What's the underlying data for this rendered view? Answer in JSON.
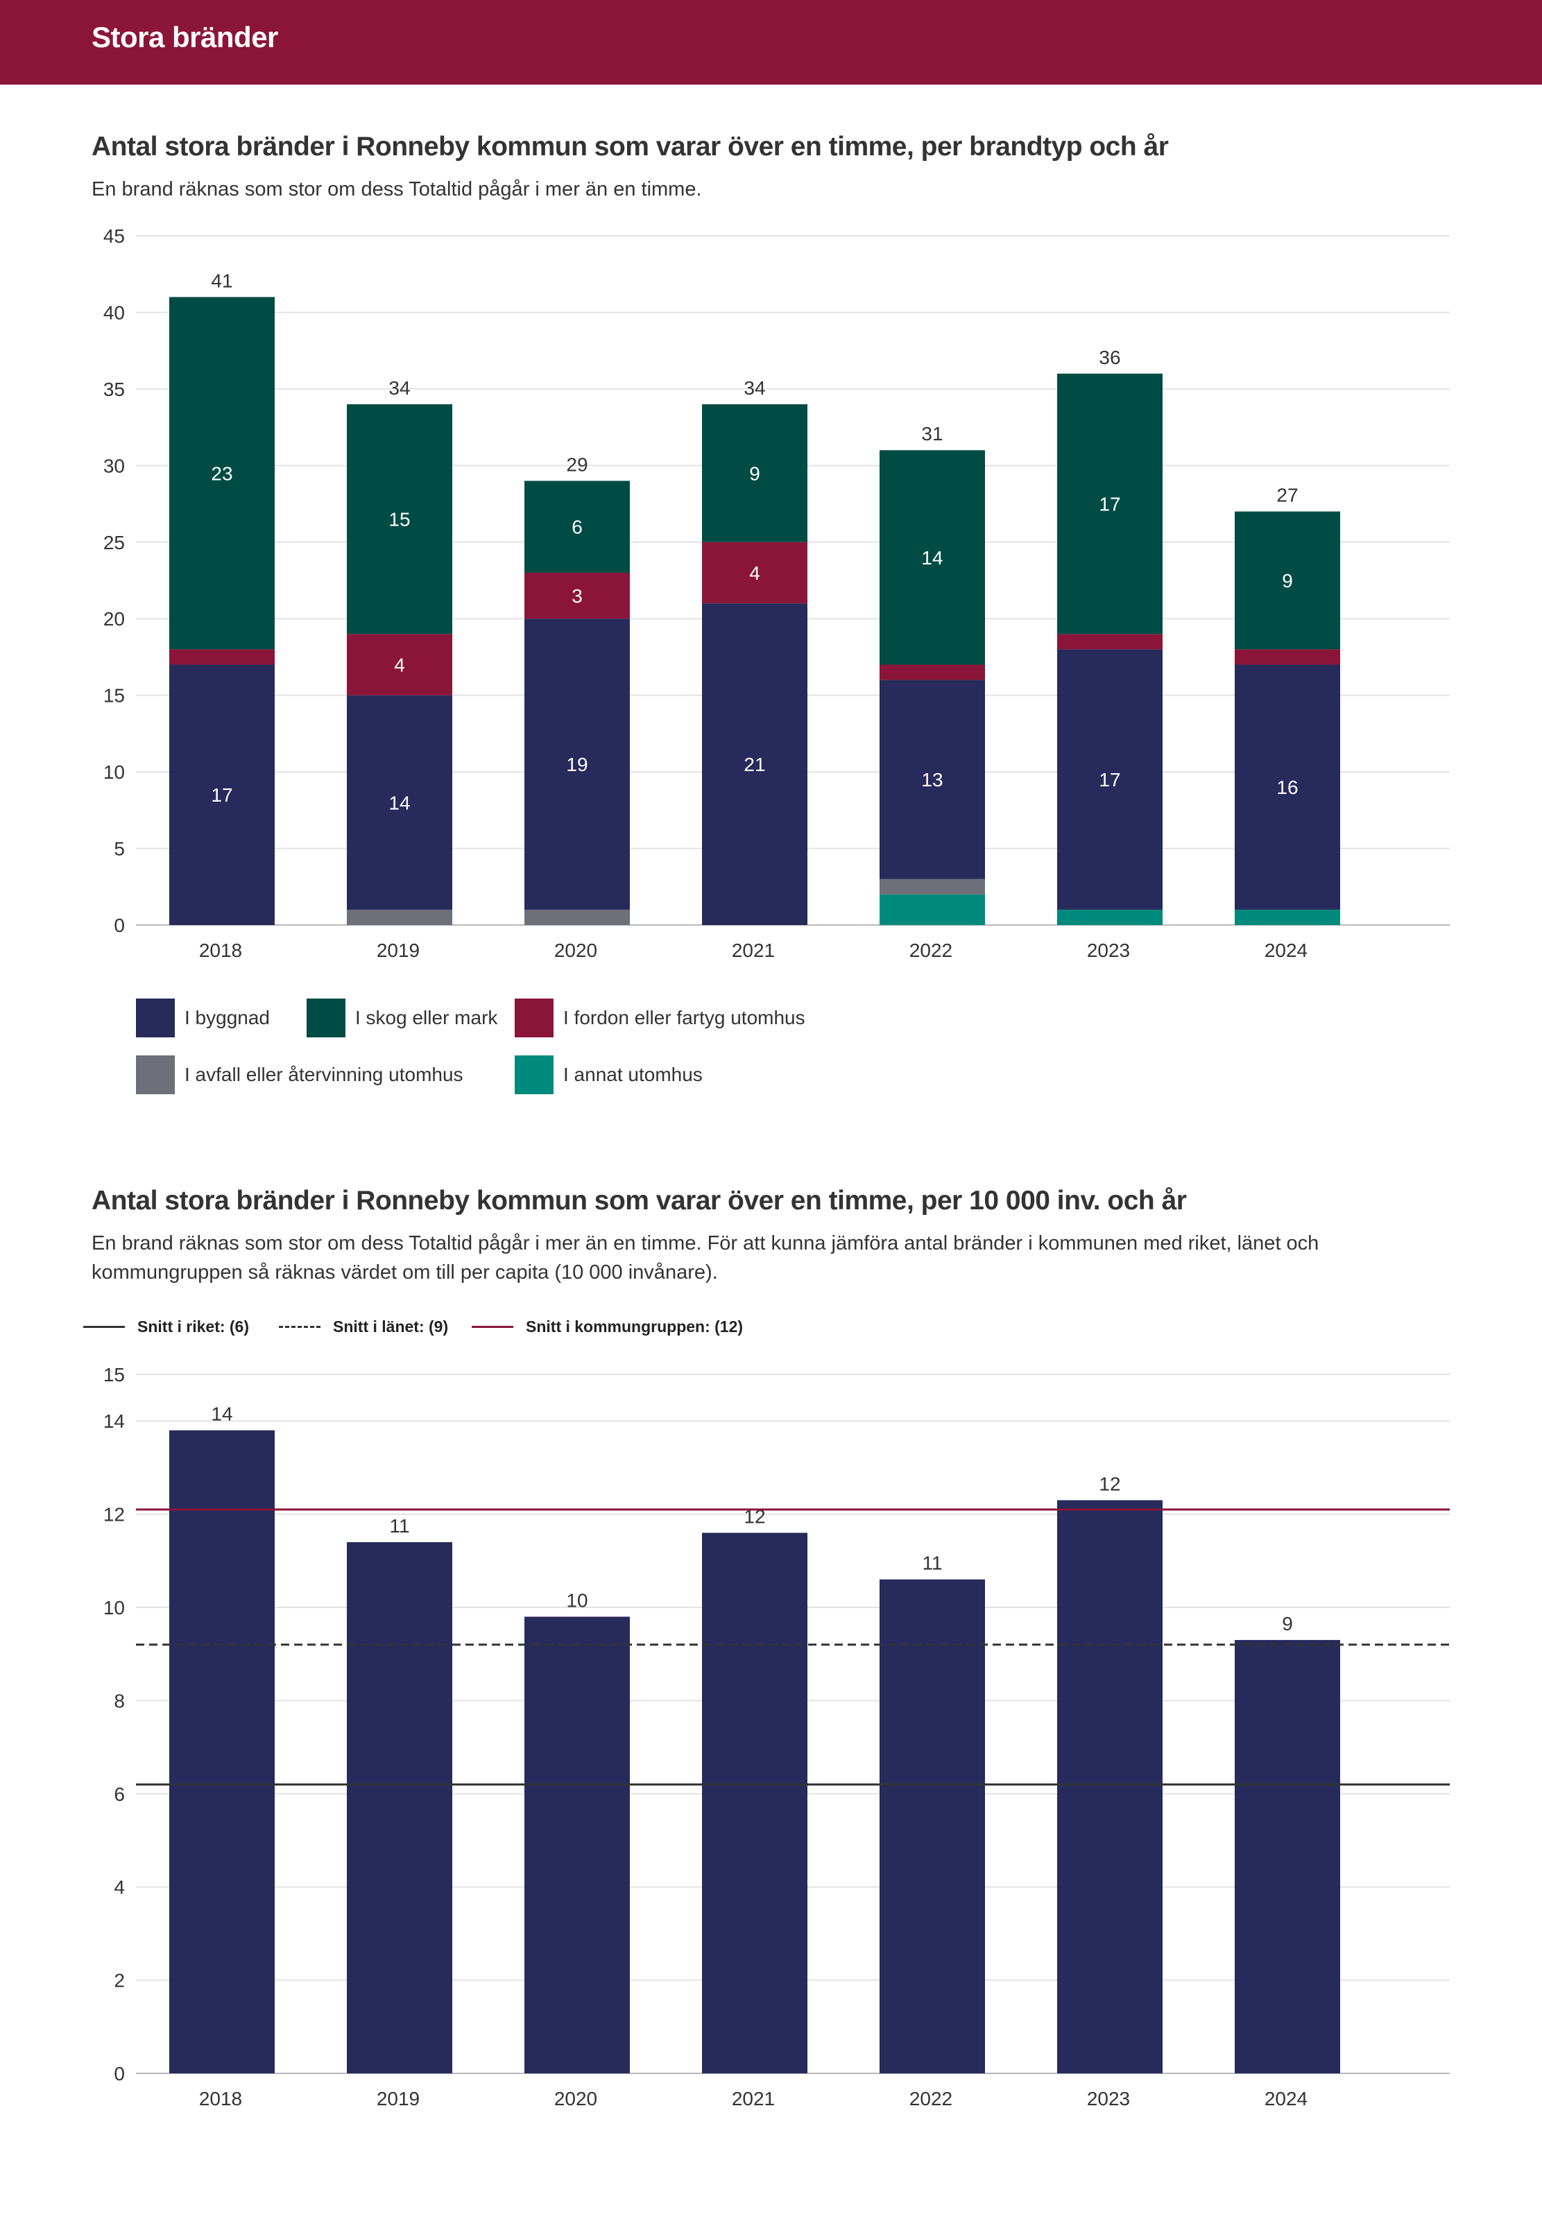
{
  "header": {
    "title": "Stora bränder"
  },
  "chart1": {
    "title": "Antal stora bränder i Ronneby kommun som varar över en timme, per brandtyp och år",
    "subtitle": "En brand räknas som stor om dess Totaltid pågår i mer än en timme."
  },
  "chart2": {
    "title": "Antal stora bränder i Ronneby kommun som varar över en timme, per 10 000 inv. och år",
    "subtitle": "En brand räknas som stor om dess Totaltid pågår i mer än en timme. För att kunna jämföra antal bränder i kommunen med riket, länet och kommungruppen så räknas värdet om till per capita (10 000 invånare)."
  },
  "colors": {
    "header": "#8b1538",
    "byggnad": "#262b5c",
    "skog": "#004c45",
    "fordon": "#8b1538",
    "avfall": "#6d7079",
    "annat": "#008a7d",
    "riket_line": "#333333",
    "lanet_line": "#333333",
    "kommungrupp_line": "#8b1538"
  },
  "chart_data": [
    {
      "type": "bar",
      "stacked": true,
      "categories": [
        "2018",
        "2019",
        "2020",
        "2021",
        "2022",
        "2023",
        "2024"
      ],
      "series": [
        {
          "name": "I byggnad",
          "color": "#262b5c",
          "values": [
            17,
            14,
            19,
            21,
            13,
            17,
            16
          ]
        },
        {
          "name": "I skog eller mark",
          "color": "#004c45",
          "values": [
            23,
            15,
            6,
            9,
            14,
            17,
            9
          ]
        },
        {
          "name": "I fordon eller fartyg utomhus",
          "color": "#8b1538",
          "values": [
            1,
            4,
            3,
            4,
            1,
            1,
            1
          ]
        },
        {
          "name": "I avfall eller återvinning utomhus",
          "color": "#6d7079",
          "values": [
            0,
            1,
            1,
            0,
            1,
            0,
            0
          ]
        },
        {
          "name": "I annat utomhus",
          "color": "#008a7d",
          "values": [
            0,
            0,
            0,
            0,
            2,
            1,
            1
          ]
        }
      ],
      "stack_order": [
        "I annat utomhus",
        "I avfall eller återvinning utomhus",
        "I byggnad",
        "I fordon eller fartyg utomhus",
        "I skog eller mark"
      ],
      "totals": [
        41,
        34,
        29,
        34,
        31,
        36,
        27
      ],
      "ylim": [
        0,
        45
      ],
      "yticks": [
        0,
        5,
        10,
        15,
        20,
        25,
        30,
        35,
        40,
        45
      ],
      "grid": true,
      "legend": "bottom"
    },
    {
      "type": "bar",
      "categories": [
        "2018",
        "2019",
        "2020",
        "2021",
        "2022",
        "2023",
        "2024"
      ],
      "values": [
        13.8,
        11.4,
        9.8,
        11.6,
        10.6,
        12.3,
        9.3
      ],
      "value_labels": [
        "14",
        "11",
        "10",
        "12",
        "11",
        "12",
        "9"
      ],
      "ylim": [
        0,
        15
      ],
      "yticks": [
        0,
        2,
        4,
        6,
        8,
        10,
        12,
        14,
        15
      ],
      "reference_lines": [
        {
          "name": "Snitt i riket: (6)",
          "value": 6.2,
          "style": "solid",
          "color": "#333333"
        },
        {
          "name": "Snitt i länet: (9)",
          "value": 9.2,
          "style": "dashed",
          "color": "#333333"
        },
        {
          "name": "Snitt i kommungruppen: (12)",
          "value": 12.1,
          "style": "solid",
          "color": "#8b1538"
        }
      ],
      "grid": true,
      "legend": "top-left"
    }
  ]
}
